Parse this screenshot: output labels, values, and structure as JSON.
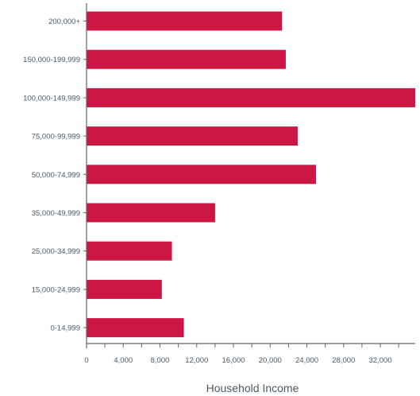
{
  "chart_data": {
    "type": "bar",
    "orientation": "horizontal",
    "title": "",
    "xlabel": "Household Income",
    "ylabel": "",
    "categories": [
      "200,000+",
      "150,000-199,999",
      "100,000-149,999",
      "75,000-99,999",
      "50,000-74,999",
      "35,000-49,999",
      "25,000-34,999",
      "15,000-24,999",
      "0-14,999"
    ],
    "values": [
      21300,
      21700,
      35800,
      23000,
      25000,
      14000,
      9300,
      8200,
      10600
    ],
    "xlim": [
      0,
      35800
    ],
    "xticks": [
      "0",
      "4,000",
      "8,000",
      "12,000",
      "16,000",
      "20,000",
      "24,000",
      "28,000",
      "32,000"
    ],
    "grid": false,
    "legend": "none",
    "colors": {
      "bar": "#cc1744",
      "axis": "#5c6670",
      "text": "#4a5a66"
    }
  }
}
